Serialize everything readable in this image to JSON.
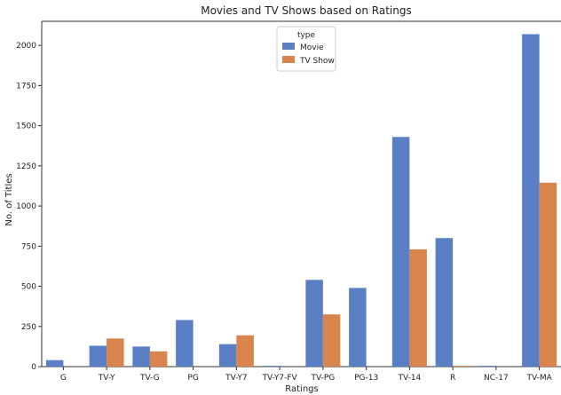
{
  "chart_data": {
    "type": "bar",
    "title": "Movies and TV Shows based on Ratings",
    "xlabel": "Ratings",
    "ylabel": "No. of Titles",
    "categories": [
      "G",
      "TV-Y",
      "TV-G",
      "PG",
      "TV-Y7",
      "TV-Y7-FV",
      "TV-PG",
      "PG-13",
      "TV-14",
      "R",
      "NC-17",
      "TV-MA"
    ],
    "series": [
      {
        "name": "Movie",
        "values": [
          40,
          130,
          125,
          290,
          140,
          5,
          540,
          490,
          1430,
          800,
          5,
          2070
        ],
        "color": "#5b7fc4"
      },
      {
        "name": "TV Show",
        "values": [
          0,
          175,
          95,
          0,
          195,
          0,
          325,
          0,
          730,
          5,
          0,
          1145
        ],
        "color": "#d8844c"
      }
    ],
    "ylim": [
      0,
      2150
    ],
    "yticks": [
      0,
      250,
      500,
      750,
      1000,
      1250,
      1500,
      1750,
      2000
    ],
    "legend": {
      "title": "type",
      "position": "top-center"
    },
    "grid": false
  }
}
